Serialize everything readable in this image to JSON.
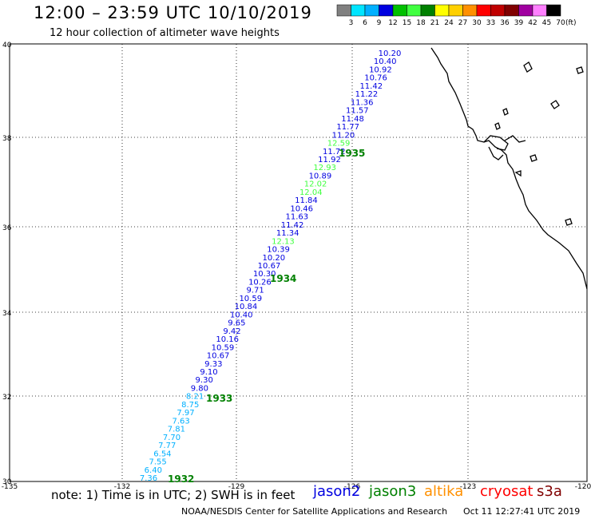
{
  "header": {
    "title": "12:00 – 23:59 UTC 10/10/2019",
    "subtitle": "12 hour collection of altimeter wave heights"
  },
  "legend": {
    "colors": [
      "#808080",
      "#00e5ff",
      "#00b0ff",
      "#0000e0",
      "#00c000",
      "#40ff40",
      "#008000",
      "#ffff00",
      "#ffd000",
      "#ff9000",
      "#ff0000",
      "#c00000",
      "#800000",
      "#a000a0",
      "#ff80ff",
      "#000000"
    ],
    "labels": [
      "3",
      "6",
      "9",
      "12",
      "15",
      "18",
      "21",
      "24",
      "27",
      "30",
      "33",
      "36",
      "39",
      "42",
      "45",
      "70"
    ],
    "unit": "(ft)"
  },
  "axes": {
    "lat_labels": [
      "40",
      "38",
      "36",
      "34",
      "32",
      "30"
    ],
    "lon_labels": [
      "-135",
      "-132",
      "-129",
      "-126",
      "-123",
      "-120"
    ]
  },
  "passes": [
    {
      "label": "1932",
      "color": "#008000"
    },
    {
      "label": "1933",
      "color": "#008000"
    },
    {
      "label": "1934",
      "color": "#008000"
    },
    {
      "label": "1935",
      "color": "#008000"
    }
  ],
  "wave_heights": [
    {
      "v": "10.20",
      "c": "#0000e0"
    },
    {
      "v": "10.40",
      "c": "#0000e0"
    },
    {
      "v": "10.92",
      "c": "#0000e0"
    },
    {
      "v": "10.76",
      "c": "#0000e0"
    },
    {
      "v": "11.42",
      "c": "#0000e0"
    },
    {
      "v": "11.22",
      "c": "#0000e0"
    },
    {
      "v": "11.36",
      "c": "#0000e0"
    },
    {
      "v": "11.57",
      "c": "#0000e0"
    },
    {
      "v": "11.48",
      "c": "#0000e0"
    },
    {
      "v": "11.77",
      "c": "#0000e0"
    },
    {
      "v": "11.20",
      "c": "#0000e0"
    },
    {
      "v": "12.59",
      "c": "#40ff40"
    },
    {
      "v": "11.72",
      "c": "#0000e0"
    },
    {
      "v": "11.92",
      "c": "#0000e0"
    },
    {
      "v": "12.93",
      "c": "#40ff40"
    },
    {
      "v": "10.89",
      "c": "#0000e0"
    },
    {
      "v": "12.02",
      "c": "#40ff40"
    },
    {
      "v": "12.04",
      "c": "#40ff40"
    },
    {
      "v": "11.84",
      "c": "#0000e0"
    },
    {
      "v": "10.46",
      "c": "#0000e0"
    },
    {
      "v": "11.63",
      "c": "#0000e0"
    },
    {
      "v": "11.42",
      "c": "#0000e0"
    },
    {
      "v": "11.34",
      "c": "#0000e0"
    },
    {
      "v": "12.13",
      "c": "#40ff40"
    },
    {
      "v": "10.39",
      "c": "#0000e0"
    },
    {
      "v": "10.20",
      "c": "#0000e0"
    },
    {
      "v": "10.67",
      "c": "#0000e0"
    },
    {
      "v": "10.30",
      "c": "#0000e0"
    },
    {
      "v": "10.26",
      "c": "#0000e0"
    },
    {
      "v": "9.71",
      "c": "#0000e0"
    },
    {
      "v": "10.59",
      "c": "#0000e0"
    },
    {
      "v": "10.84",
      "c": "#0000e0"
    },
    {
      "v": "10.40",
      "c": "#0000e0"
    },
    {
      "v": "9.65",
      "c": "#0000e0"
    },
    {
      "v": "9.42",
      "c": "#0000e0"
    },
    {
      "v": "10.16",
      "c": "#0000e0"
    },
    {
      "v": "10.59",
      "c": "#0000e0"
    },
    {
      "v": "10.67",
      "c": "#0000e0"
    },
    {
      "v": "9.33",
      "c": "#0000e0"
    },
    {
      "v": "9.10",
      "c": "#0000e0"
    },
    {
      "v": "9.30",
      "c": "#0000e0"
    },
    {
      "v": "9.80",
      "c": "#0000e0"
    },
    {
      "v": "8.21",
      "c": "#00b0ff"
    },
    {
      "v": "8.75",
      "c": "#00b0ff"
    },
    {
      "v": "7.97",
      "c": "#00b0ff"
    },
    {
      "v": "7.63",
      "c": "#00b0ff"
    },
    {
      "v": "7.81",
      "c": "#00b0ff"
    },
    {
      "v": "7.70",
      "c": "#00b0ff"
    },
    {
      "v": "7.77",
      "c": "#00b0ff"
    },
    {
      "v": "6.54",
      "c": "#00b0ff"
    },
    {
      "v": "7.55",
      "c": "#00b0ff"
    },
    {
      "v": "6.40",
      "c": "#00b0ff"
    },
    {
      "v": "7.36",
      "c": "#00b0ff"
    }
  ],
  "note": "note:  1) Time is in UTC;  2) SWH is in feet",
  "satellites": [
    {
      "name": "jason2",
      "color": "#0000e0"
    },
    {
      "name": "jason3",
      "color": "#008000"
    },
    {
      "name": "altika",
      "color": "#ff9000"
    },
    {
      "name": "cryosat",
      "color": "#ff0000"
    },
    {
      "name": "s3a",
      "color": "#800000"
    }
  ],
  "footer": {
    "credit": "NOAA/NESDIS Center for Satellite Applications and Research",
    "timestamp": "Oct 11 12:27:41 UTC 2019"
  }
}
